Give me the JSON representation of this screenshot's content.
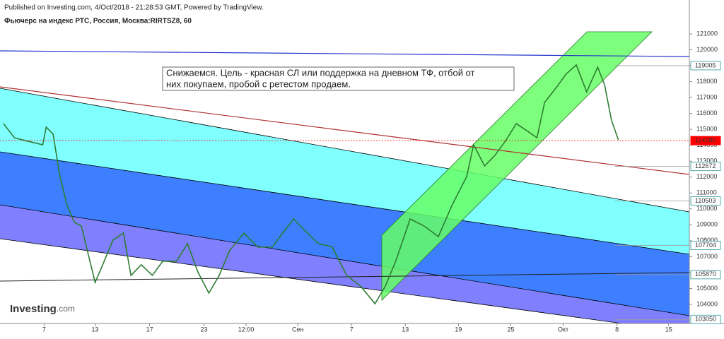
{
  "header": {
    "published": "Published on Investing.com, 4/Oct/2018 - 21:28:53 GMT, Powered by TradingView.",
    "symbol": "Фьючерс на индекс РТС, Россия, Москва:RIRTSZ8, 60",
    "logo": "Investing",
    "logo_suffix": ".com"
  },
  "chart_data": {
    "type": "line",
    "annotation": "Снижаемся. Цель - красная СЛ или поддержка на дневном ТФ, отбой от них покупаем, пробой с ретестом продаем.",
    "series": [
      {
        "name": "RIRTSZ8",
        "color": "#2e7d32",
        "x": [
          0.5,
          2.1,
          4.1,
          6.2,
          6.7,
          7.7,
          8.7,
          9.7,
          10.8,
          11.8,
          12.8,
          13.8,
          14.9,
          16.4,
          17.9,
          19.0,
          20.5,
          22.1,
          23.6,
          25.6,
          27.2,
          28.7,
          30.3,
          31.8,
          33.3,
          35.4,
          37.4,
          39.5,
          41.0,
          42.6,
          44.1,
          46.2,
          48.2,
          50.3,
          52.3,
          54.4,
          55.9,
          57.4,
          59.5,
          61.5,
          63.6,
          65.6,
          67.7,
          68.7,
          70.3,
          71.8,
          73.3,
          74.9,
          76.4,
          77.9,
          79.0,
          81.0,
          82.1,
          83.6,
          85.1,
          86.7,
          87.7,
          88.7,
          89.7
        ],
        "values": [
          115360,
          114470,
          114250,
          114030,
          115140,
          114700,
          112030,
          110260,
          109150,
          108930,
          107150,
          105380,
          106490,
          108040,
          108480,
          105820,
          106490,
          105820,
          106710,
          106710,
          107820,
          106040,
          104710,
          105820,
          107370,
          108480,
          107600,
          107600,
          108480,
          109370,
          108700,
          107820,
          107600,
          105820,
          105150,
          104040,
          105150,
          106710,
          109370,
          108930,
          108260,
          110260,
          112030,
          114030,
          112700,
          113370,
          114250,
          115360,
          114920,
          114470,
          116690,
          117800,
          118470,
          119050,
          117360,
          118910,
          117800,
          115580,
          114340
        ]
      }
    ],
    "price_labels": [
      {
        "value": 119005,
        "color": "#000000"
      },
      {
        "value": 114290,
        "color": "#ff0000"
      },
      {
        "value": 112672,
        "color": "#000000"
      },
      {
        "value": 110503,
        "color": "#000000"
      },
      {
        "value": 107704,
        "color": "#000000"
      },
      {
        "value": 105870,
        "color": "#000000"
      },
      {
        "value": 103050,
        "color": "#000000"
      }
    ],
    "xlim": [
      0,
      100
    ],
    "ylim": [
      102800,
      123130
    ],
    "xticks": [
      {
        "value": 6.4,
        "label": "7"
      },
      {
        "value": 13.8,
        "label": "13"
      },
      {
        "value": 21.7,
        "label": "17"
      },
      {
        "value": 29.6,
        "label": "23"
      },
      {
        "value": 35.7,
        "label": "12:00"
      },
      {
        "value": 43.2,
        "label": "Сен"
      },
      {
        "value": 51.0,
        "label": "7"
      },
      {
        "value": 58.8,
        "label": "13"
      },
      {
        "value": 66.5,
        "label": "19"
      },
      {
        "value": 74.1,
        "label": "25"
      },
      {
        "value": 81.7,
        "label": "Окт"
      },
      {
        "value": 89.5,
        "label": "8"
      },
      {
        "value": 97.0,
        "label": "15"
      }
    ],
    "yticks": [
      104000,
      105000,
      106000,
      107000,
      108000,
      109000,
      110000,
      111000,
      112000,
      113000,
      114000,
      115000,
      116000,
      117000,
      118000,
      119000,
      120000,
      121000
    ]
  }
}
